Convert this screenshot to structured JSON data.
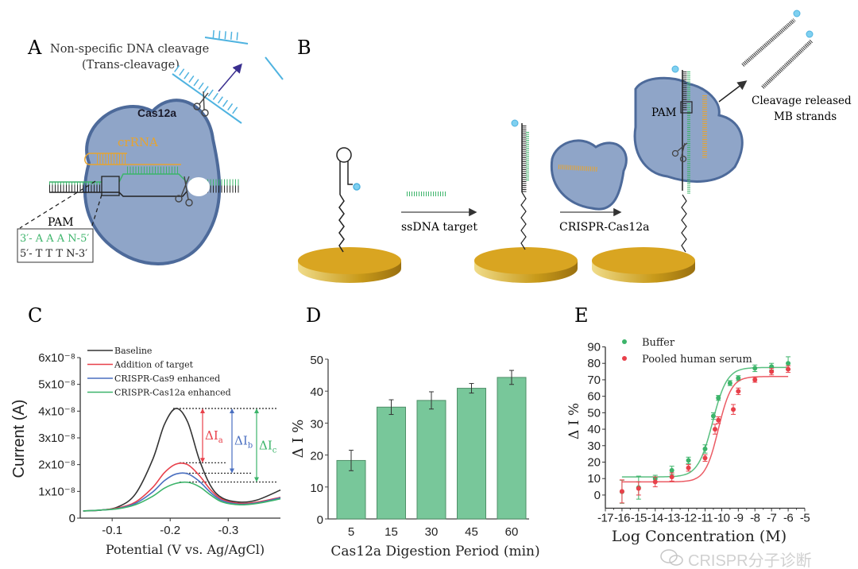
{
  "panel_a": {
    "letter": "A",
    "title_line1": "Non-specific DNA cleavage",
    "title_line2": "(Trans-cleavage)",
    "protein_label": "Cas12a",
    "rna_label": "crRNA",
    "pam_label": "PAM",
    "pam_seq_top": "3′- A A A N-5′",
    "pam_seq_bottom": "5′- T  T T N-3′"
  },
  "panel_b": {
    "letter": "B",
    "step1_label": "ssDNA target",
    "step2_label": "CRISPR-Cas12a",
    "pam_label": "PAM",
    "release_line1": "Cleavage released",
    "release_line2": "MB strands"
  },
  "watermark": {
    "text": "CRISPR分子诊断",
    "icon": "wechat-icon"
  },
  "colors": {
    "black": "#333333",
    "red": "#e8404a",
    "blue": "#4a6fc0",
    "green": "#3cb46a",
    "bar": "#78c79a",
    "protein": "#8fa5c8",
    "gold": "#d9a521"
  },
  "chart_data": [
    {
      "id": "C",
      "letter": "C",
      "type": "line",
      "xlabel": "Potential (V vs. Ag/AgCl)",
      "ylabel": "Current (A)",
      "xlim": [
        -0.045,
        -0.39
      ],
      "ylim": [
        0,
        6e-08
      ],
      "xticks": [
        -0.1,
        -0.2,
        -0.3
      ],
      "xticklabels": [
        "-0.1",
        "-0.2",
        "-0.3"
      ],
      "yticks": [
        0,
        1e-08,
        2e-08,
        3e-08,
        4e-08,
        5e-08,
        6e-08
      ],
      "yticklabels": [
        "0",
        "1x10⁻⁸",
        "2x10⁻⁸",
        "3x10⁻⁸",
        "4x10⁻⁸",
        "5x10⁻⁸",
        "6x10⁻⁸"
      ],
      "legend": "top-left",
      "x": [
        -0.05,
        -0.08,
        -0.11,
        -0.14,
        -0.17,
        -0.19,
        -0.21,
        -0.23,
        -0.25,
        -0.27,
        -0.29,
        -0.32,
        -0.35,
        -0.39
      ],
      "series": [
        {
          "name": "Baseline",
          "color": "#333333",
          "values": [
            2.7e-09,
            3e-09,
            4.2e-09,
            9e-09,
            2.2e-08,
            3.5e-08,
            4.1e-08,
            3.6e-08,
            2.2e-08,
            1.2e-08,
            7.5e-09,
            6e-09,
            6.8e-09,
            1.05e-08
          ]
        },
        {
          "name": "Addition of target",
          "color": "#e8404a",
          "values": [
            2.7e-09,
            3e-09,
            3.8e-09,
            6e-09,
            1.15e-08,
            1.7e-08,
            2.02e-08,
            2e-08,
            1.6e-08,
            1.05e-08,
            7e-09,
            5.5e-09,
            6e-09,
            7.8e-09
          ]
        },
        {
          "name": "CRISPR-Cas9 enhanced",
          "color": "#4a6fc0",
          "values": [
            2.7e-09,
            3e-09,
            3.6e-09,
            5.5e-09,
            9.8e-09,
            1.4e-08,
            1.65e-08,
            1.66e-08,
            1.38e-08,
            9.5e-09,
            6.5e-09,
            5.2e-09,
            5.7e-09,
            7.6e-09
          ]
        },
        {
          "name": "CRISPR-Cas12a enhanced",
          "color": "#3cb46a",
          "values": [
            2.7e-09,
            3e-09,
            3.5e-09,
            5e-09,
            8.2e-09,
            1.12e-08,
            1.3e-08,
            1.34e-08,
            1.18e-08,
            8.6e-09,
            6e-09,
            5e-09,
            5.5e-09,
            7.2e-09
          ]
        }
      ],
      "peak_levels": [
        4.1e-08,
        2.07e-08,
        1.68e-08,
        1.35e-08
      ],
      "annotations": [
        {
          "label": "ΔI",
          "sub": "a",
          "color": "#e8404a",
          "from": 4.1e-08,
          "to": 2.07e-08
        },
        {
          "label": "ΔI",
          "sub": "b",
          "color": "#4a6fc0",
          "from": 4.1e-08,
          "to": 1.68e-08
        },
        {
          "label": "ΔI",
          "sub": "c",
          "color": "#3cb46a",
          "from": 4.1e-08,
          "to": 1.35e-08
        }
      ]
    },
    {
      "id": "D",
      "letter": "D",
      "type": "bar",
      "xlabel": "Cas12a Digestion Period (min)",
      "ylabel": "Δ I %",
      "ylim": [
        0,
        50
      ],
      "yticks": [
        0,
        10,
        20,
        30,
        40,
        50
      ],
      "categories": [
        "5",
        "15",
        "30",
        "45",
        "60"
      ],
      "values": [
        18.3,
        35.0,
        37.1,
        40.9,
        44.3
      ],
      "errors": [
        3.2,
        2.3,
        2.7,
        1.5,
        2.2
      ]
    },
    {
      "id": "E",
      "letter": "E",
      "type": "scatter",
      "xlabel": "Log Concentration (M)",
      "ylabel": "Δ I %",
      "xlim": [
        -17,
        -5
      ],
      "ylim": [
        -8,
        90
      ],
      "xticks": [
        -17,
        -16,
        -15,
        -14,
        -13,
        -12,
        -11,
        -10,
        -9,
        -8,
        -7,
        -6,
        -5
      ],
      "yticks": [
        0,
        10,
        20,
        30,
        40,
        50,
        60,
        70,
        80,
        90
      ],
      "legend": "top-left",
      "series": [
        {
          "name": "Buffer",
          "color": "#3cb46a",
          "x": [
            -16,
            -15,
            -14,
            -13,
            -12,
            -11,
            -10.5,
            -10.2,
            -9.5,
            -9,
            -8,
            -7,
            -6
          ],
          "y": [
            2,
            4.5,
            10,
            15,
            21,
            28,
            48,
            59,
            68,
            71,
            77,
            78,
            80
          ],
          "err": [
            7,
            7,
            2,
            2.5,
            2,
            2.5,
            2,
            1.5,
            1.5,
            1.5,
            2,
            2,
            4
          ],
          "fit": {
            "bottom": 11,
            "top": 77.5,
            "logEC50": -10.55,
            "hill": 1.0
          }
        },
        {
          "name": "Pooled human serum",
          "color": "#e8404a",
          "x": [
            -16,
            -15,
            -14,
            -13,
            -12,
            -11,
            -10.4,
            -10.2,
            -9.3,
            -9,
            -8,
            -7,
            -6
          ],
          "y": [
            2.2,
            4,
            8,
            11,
            16.5,
            22.5,
            40,
            45.5,
            52,
            63,
            70,
            75,
            76.5
          ],
          "err": [
            7,
            4,
            3,
            2.5,
            2,
            2,
            3,
            2,
            3,
            2,
            1.5,
            2,
            2
          ],
          "fit": {
            "bottom": 8,
            "top": 72,
            "logEC50": -10.2,
            "hill": 1.1
          }
        }
      ]
    }
  ]
}
